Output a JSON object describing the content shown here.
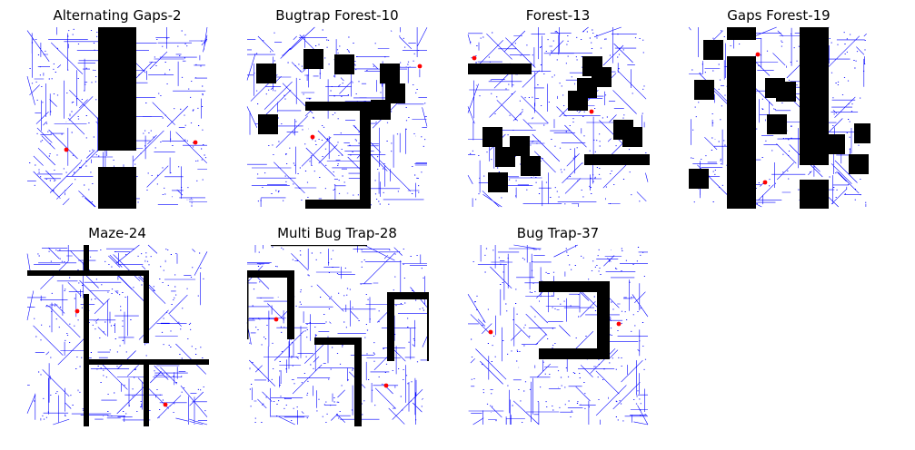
{
  "figure": {
    "panels": [
      {
        "title": "Alternating Gaps-2"
      },
      {
        "title": "Bugtrap Forest-10"
      },
      {
        "title": "Forest-13"
      },
      {
        "title": "Gaps Forest-19"
      },
      {
        "title": "Maze-24"
      },
      {
        "title": "Multi Bug Trap-28"
      },
      {
        "title": "Bug Trap-37"
      }
    ],
    "colors": {
      "obstacle": "#000000",
      "path_edges": "#0000ff",
      "markers": "#ff0000",
      "background": "#ffffff"
    }
  }
}
